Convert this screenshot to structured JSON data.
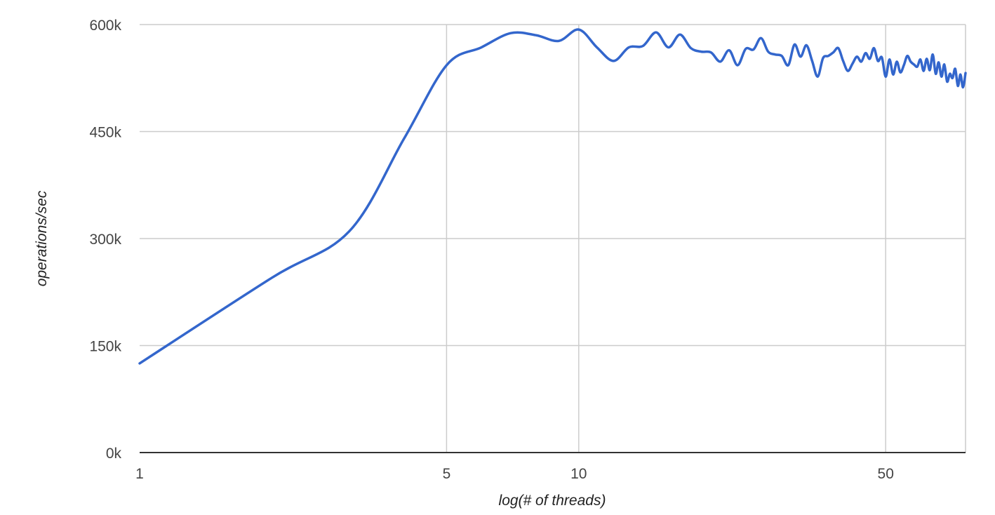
{
  "chart_data": {
    "type": "line",
    "xlabel": "log(# of threads)",
    "ylabel": "operations/sec",
    "x_scale": "log",
    "xlim": [
      1,
      76
    ],
    "ylim": [
      0,
      600000
    ],
    "x_ticks": [
      {
        "value": 1,
        "label": "1"
      },
      {
        "value": 5,
        "label": "5"
      },
      {
        "value": 10,
        "label": "10"
      },
      {
        "value": 50,
        "label": "50"
      }
    ],
    "y_ticks": [
      {
        "value": 0,
        "label": "0k"
      },
      {
        "value": 150000,
        "label": "150k"
      },
      {
        "value": 300000,
        "label": "300k"
      },
      {
        "value": 450000,
        "label": "450k"
      },
      {
        "value": 600000,
        "label": "600k"
      }
    ],
    "grid": true,
    "legend": "none",
    "colors": {
      "series": "#3366cc"
    },
    "series": [
      {
        "x": [
          1,
          2,
          3,
          4,
          5,
          6,
          7,
          8,
          9,
          10,
          11,
          12,
          13,
          14,
          15,
          16,
          17,
          18,
          19,
          20,
          21,
          22,
          23,
          24,
          25,
          26,
          27,
          28,
          29,
          30,
          31,
          32,
          33,
          34,
          35,
          36,
          37,
          38,
          39,
          40,
          41,
          42,
          43,
          44,
          45,
          46,
          47,
          48,
          49,
          50,
          51,
          52,
          53,
          54,
          55,
          56,
          57,
          58,
          59,
          60,
          61,
          62,
          63,
          64,
          65,
          66,
          67,
          68,
          69,
          70,
          71,
          72,
          73,
          74,
          75,
          76
        ],
        "values": [
          125000,
          245000,
          310000,
          440000,
          543000,
          568000,
          588000,
          585000,
          577000,
          593000,
          568000,
          549000,
          568000,
          570000,
          589000,
          568000,
          586000,
          567000,
          562000,
          561000,
          548000,
          564000,
          543000,
          566000,
          565000,
          581000,
          562000,
          558000,
          556000,
          543000,
          572000,
          555000,
          571000,
          549000,
          527000,
          553000,
          556000,
          561000,
          567000,
          549000,
          535000,
          545000,
          555000,
          548000,
          560000,
          552000,
          567000,
          549000,
          554000,
          527000,
          551000,
          530000,
          548000,
          533000,
          543000,
          556000,
          548000,
          544000,
          541000,
          551000,
          535000,
          552000,
          536000,
          558000,
          531000,
          547000,
          527000,
          544000,
          520000,
          531000,
          525000,
          538000,
          514000,
          530000,
          512000,
          532000
        ]
      }
    ]
  }
}
